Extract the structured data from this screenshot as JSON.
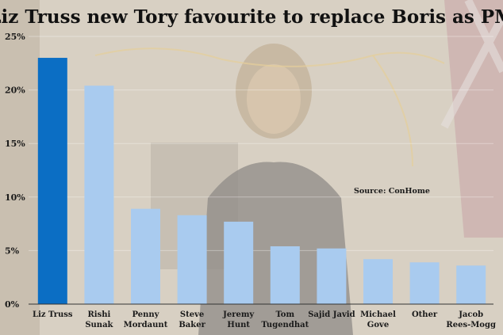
{
  "chart_data": {
    "type": "bar",
    "title": "Liz Truss new Tory favourite to replace Boris as PM",
    "source_text": "Source:  ConHome",
    "xlabel": "",
    "ylabel": "",
    "ylim": [
      0,
      25
    ],
    "yticks": [
      0,
      5,
      10,
      15,
      20,
      25
    ],
    "ytick_labels": [
      "0%",
      "5%",
      "10%",
      "15%",
      "20%",
      "25%"
    ],
    "categories": [
      [
        "Liz Truss"
      ],
      [
        "Rishi",
        "Sunak"
      ],
      [
        "Penny",
        "Mordaunt"
      ],
      [
        "Steve",
        "Baker"
      ],
      [
        "Jeremy",
        "Hunt"
      ],
      [
        "Tom",
        "Tugendhat"
      ],
      [
        "Sajid Javid"
      ],
      [
        "Michael",
        "Gove"
      ],
      [
        "Other"
      ],
      [
        "Jacob",
        "Rees-Mogg"
      ]
    ],
    "values": [
      23.0,
      20.4,
      8.9,
      8.3,
      7.7,
      5.4,
      5.2,
      4.2,
      3.9,
      3.6
    ],
    "colors": {
      "highlight": "#0b6ec4",
      "bar": "#a9cbef",
      "axis": "#333333"
    }
  }
}
